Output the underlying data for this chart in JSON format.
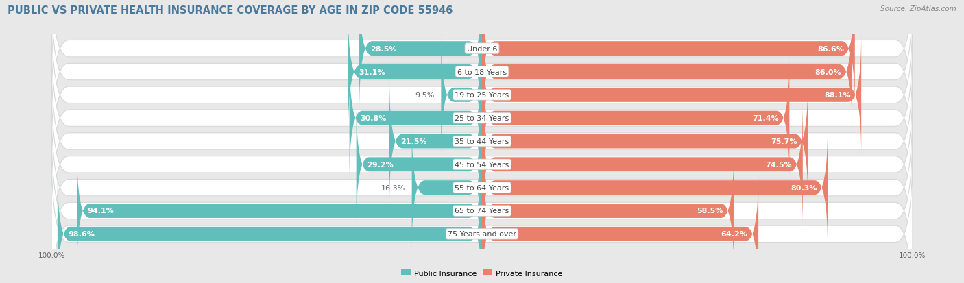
{
  "title": "PUBLIC VS PRIVATE HEALTH INSURANCE COVERAGE BY AGE IN ZIP CODE 55946",
  "source": "Source: ZipAtlas.com",
  "categories": [
    "Under 6",
    "6 to 18 Years",
    "19 to 25 Years",
    "25 to 34 Years",
    "35 to 44 Years",
    "45 to 54 Years",
    "55 to 64 Years",
    "65 to 74 Years",
    "75 Years and over"
  ],
  "public_values": [
    28.5,
    31.1,
    9.5,
    30.8,
    21.5,
    29.2,
    16.3,
    94.1,
    98.6
  ],
  "private_values": [
    86.6,
    86.0,
    88.1,
    71.4,
    75.7,
    74.5,
    80.3,
    58.5,
    64.2
  ],
  "public_color": "#61bfbb",
  "private_color": "#e8806c",
  "private_color_light": "#f0a898",
  "bg_color": "#e8e8e8",
  "bar_bg_color": "#ffffff",
  "bar_outer_color": "#d8d8d8",
  "label_white": "#ffffff",
  "label_dark": "#666666",
  "title_color": "#4a7a9b",
  "source_color": "#888888",
  "legend_public": "Public Insurance",
  "legend_private": "Private Insurance",
  "max_val": 100.0,
  "title_fontsize": 10.5,
  "label_fontsize": 8,
  "cat_fontsize": 8,
  "source_fontsize": 7.5,
  "axis_fontsize": 7.5
}
